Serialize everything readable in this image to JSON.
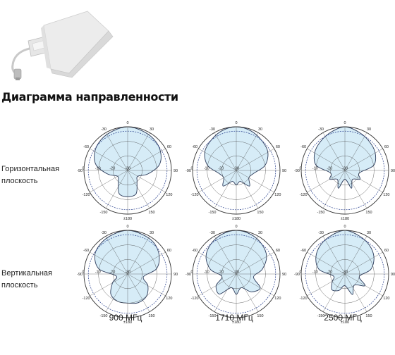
{
  "title": "Диаграмма направленности",
  "rows": [
    {
      "line1": "Горизонтальная",
      "line2": "плоскость"
    },
    {
      "line1": "Вертикальная",
      "line2": "плоскость"
    }
  ],
  "columns": [
    "900 МГц",
    "1710 МГц",
    "2500 МГц"
  ],
  "polar": {
    "angle_labels": [
      "0",
      "30",
      "60",
      "90",
      "120",
      "150",
      "±180",
      "-150",
      "-120",
      "-90",
      "-60",
      "-30"
    ],
    "radial_labels": [
      "-30",
      "-20",
      "-10",
      "0"
    ],
    "fill_color": "#d6ecf7",
    "line_color": "#2b3a5a",
    "grid_color": "#444444"
  },
  "chart_data": [
    {
      "type": "polar",
      "plane": "Горизонтальная плоскость",
      "freq": "900 МГц",
      "angles": [
        0,
        20,
        40,
        60,
        80,
        100,
        120,
        140,
        160,
        180,
        200,
        220,
        240,
        260,
        280,
        300,
        320,
        340
      ],
      "values": [
        0,
        -1,
        -2,
        -4,
        -8,
        -16,
        -22,
        -20,
        -13,
        -12,
        -13,
        -20,
        -22,
        -16,
        -8,
        -4,
        -2,
        -1
      ]
    },
    {
      "type": "polar",
      "plane": "Горизонтальная плоскость",
      "freq": "1710 МГц",
      "angles": [
        0,
        20,
        40,
        60,
        80,
        100,
        120,
        140,
        160,
        180,
        200,
        220,
        240,
        260,
        280,
        300,
        320,
        340
      ],
      "values": [
        0,
        -1,
        -3,
        -5,
        -10,
        -18,
        -20,
        -16,
        -22,
        -20,
        -22,
        -16,
        -20,
        -18,
        -10,
        -5,
        -3,
        -1
      ]
    },
    {
      "type": "polar",
      "plane": "Горизонтальная плоскость",
      "freq": "2500 МГц",
      "angles": [
        0,
        20,
        40,
        60,
        80,
        100,
        120,
        140,
        160,
        180,
        200,
        220,
        240,
        260,
        280,
        300,
        320,
        340
      ],
      "values": [
        0,
        -2,
        -4,
        -6,
        -10,
        -20,
        -18,
        -22,
        -17,
        -24,
        -17,
        -22,
        -18,
        -20,
        -10,
        -6,
        -4,
        -2
      ]
    },
    {
      "type": "polar",
      "plane": "Вертикальная плоскость",
      "freq": "900 МГц",
      "angles": [
        0,
        20,
        40,
        60,
        80,
        100,
        120,
        140,
        160,
        180,
        200,
        220,
        240,
        260,
        280,
        300,
        320,
        340
      ],
      "values": [
        0,
        -1,
        -2,
        -5,
        -10,
        -19,
        -14,
        -10,
        -9,
        -10,
        -10,
        -12,
        -18,
        -22,
        -10,
        -4,
        -2,
        -1
      ]
    },
    {
      "type": "polar",
      "plane": "Вертикальная плоскость",
      "freq": "1710 МГц",
      "angles": [
        0,
        20,
        40,
        60,
        80,
        100,
        120,
        140,
        160,
        180,
        200,
        220,
        240,
        260,
        280,
        300,
        320,
        340
      ],
      "values": [
        0,
        -1,
        -3,
        -6,
        -12,
        -18,
        -11,
        -14,
        -20,
        -16,
        -20,
        -12,
        -14,
        -20,
        -12,
        -6,
        -3,
        -1
      ]
    },
    {
      "type": "polar",
      "plane": "Вертикальная плоскость",
      "freq": "2500 МГц",
      "angles": [
        0,
        20,
        40,
        60,
        80,
        100,
        120,
        140,
        160,
        180,
        200,
        220,
        240,
        260,
        280,
        300,
        320,
        340
      ],
      "values": [
        0,
        -2,
        -4,
        -7,
        -12,
        -20,
        -14,
        -20,
        -15,
        -22,
        -18,
        -16,
        -20,
        -22,
        -12,
        -7,
        -4,
        -2
      ]
    }
  ]
}
